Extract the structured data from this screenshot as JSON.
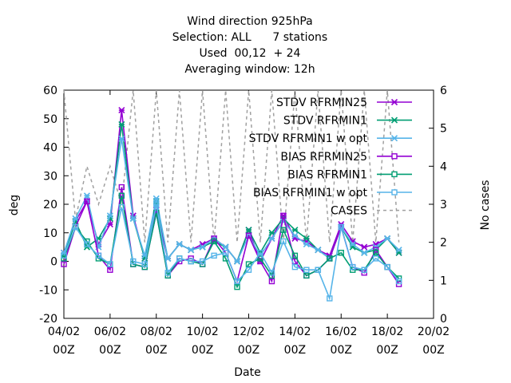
{
  "title_lines": [
    "Wind direction 925hPa",
    "Selection: ALL      7 stations",
    "Used  00,12  + 24",
    "Averaging window: 12h"
  ],
  "chart_data": {
    "type": "line",
    "xlabel": "Date",
    "ylabel": "deg",
    "y2label": "No cases",
    "xlim": [
      0,
      16
    ],
    "ylim": [
      -20,
      60
    ],
    "y2lim": [
      0,
      6
    ],
    "x_ticks": [
      {
        "x": 0,
        "l1": "04/02",
        "l2": "00Z"
      },
      {
        "x": 2,
        "l1": "06/02",
        "l2": "00Z"
      },
      {
        "x": 4,
        "l1": "08/02",
        "l2": "00Z"
      },
      {
        "x": 6,
        "l1": "10/02",
        "l2": "00Z"
      },
      {
        "x": 8,
        "l1": "12/02",
        "l2": "00Z"
      },
      {
        "x": 10,
        "l1": "14/02",
        "l2": "00Z"
      },
      {
        "x": 12,
        "l1": "16/02",
        "l2": "00Z"
      },
      {
        "x": 14,
        "l1": "18/02",
        "l2": "00Z"
      },
      {
        "x": 16,
        "l1": "20/02",
        "l2": "00Z"
      }
    ],
    "y_ticks": [
      -20,
      -10,
      0,
      10,
      20,
      30,
      40,
      50,
      60
    ],
    "y2_ticks": [
      0,
      1,
      2,
      3,
      4,
      5,
      6
    ],
    "legend_position": "top-right",
    "x": [
      0,
      0.5,
      1,
      1.5,
      2,
      2.5,
      3,
      3.5,
      4,
      4.5,
      5,
      5.5,
      6,
      6.5,
      7,
      7.5,
      8,
      8.5,
      9,
      9.5,
      10,
      10.5,
      11,
      11.5,
      12,
      12.5,
      13,
      13.5,
      14,
      14.5
    ],
    "series": [
      {
        "name": "STDV RFRMIN25",
        "color": "#9400d3",
        "marker": "x",
        "axis": "y1",
        "values": [
          3,
          14,
          21,
          6,
          13,
          53,
          16,
          1,
          18,
          1,
          6,
          4,
          6,
          8,
          5,
          0,
          11,
          0,
          8,
          16,
          8,
          7,
          4,
          2,
          13,
          7,
          5,
          6,
          8,
          3
        ]
      },
      {
        "name": "STDV RFRMIN1",
        "color": "#009e73",
        "marker": "x",
        "axis": "y1",
        "values": [
          2,
          14,
          5,
          8,
          15,
          48,
          15,
          1,
          21,
          1,
          6,
          4,
          5,
          7,
          5,
          0,
          11,
          3,
          10,
          15,
          11,
          8,
          4,
          1,
          12,
          5,
          3,
          4,
          8,
          3
        ]
      },
      {
        "name": "STDV RFRMIN1 w opt",
        "color": "#56b4e9",
        "marker": "x",
        "axis": "y1",
        "values": [
          3,
          15,
          23,
          5,
          16,
          43,
          15,
          2,
          22,
          1,
          6,
          4,
          5,
          8,
          5,
          0,
          9,
          2,
          8,
          14,
          9,
          6,
          4,
          1,
          12,
          6,
          3,
          5,
          8,
          4
        ]
      },
      {
        "name": "BIAS RFRMIN25",
        "color": "#9400d3",
        "marker": "box",
        "axis": "y1",
        "values": [
          -1,
          12,
          21,
          2,
          -3,
          26,
          -1,
          -2,
          17,
          -5,
          0,
          1,
          -1,
          8,
          3,
          -7,
          9,
          0,
          -7,
          16,
          0,
          -5,
          -3,
          1,
          12,
          -2,
          -4,
          4,
          -2,
          -8
        ]
      },
      {
        "name": "BIAS RFRMIN1",
        "color": "#009e73",
        "marker": "box",
        "axis": "y1",
        "values": [
          1,
          12,
          7,
          1,
          -1,
          23,
          -1,
          -2,
          17,
          -5,
          1,
          0,
          -1,
          7,
          1,
          -9,
          -1,
          1,
          -5,
          11,
          2,
          -5,
          -3,
          1,
          3,
          -3,
          -3,
          3,
          -2,
          -6
        ]
      },
      {
        "name": "BIAS RFRMIN1 w opt",
        "color": "#56b4e9",
        "marker": "box",
        "axis": "y1",
        "values": [
          2,
          12,
          6,
          2,
          -1,
          19,
          0,
          -1,
          20,
          -4,
          1,
          0,
          0,
          2,
          3,
          -7,
          -3,
          3,
          -4,
          7,
          -2,
          -3,
          -3,
          -13,
          12,
          -2,
          -3,
          1,
          -2,
          -7
        ]
      },
      {
        "name": "CASES",
        "color": "#a0a0a0",
        "marker": "none",
        "dash": true,
        "axis": "y2",
        "values": [
          6,
          2.6,
          4,
          3,
          4,
          3,
          6,
          2,
          6,
          2,
          6,
          2,
          6,
          2,
          6,
          2,
          6,
          2,
          6,
          2,
          6,
          2,
          6,
          2,
          6,
          2,
          6,
          2,
          6,
          2
        ]
      }
    ]
  }
}
